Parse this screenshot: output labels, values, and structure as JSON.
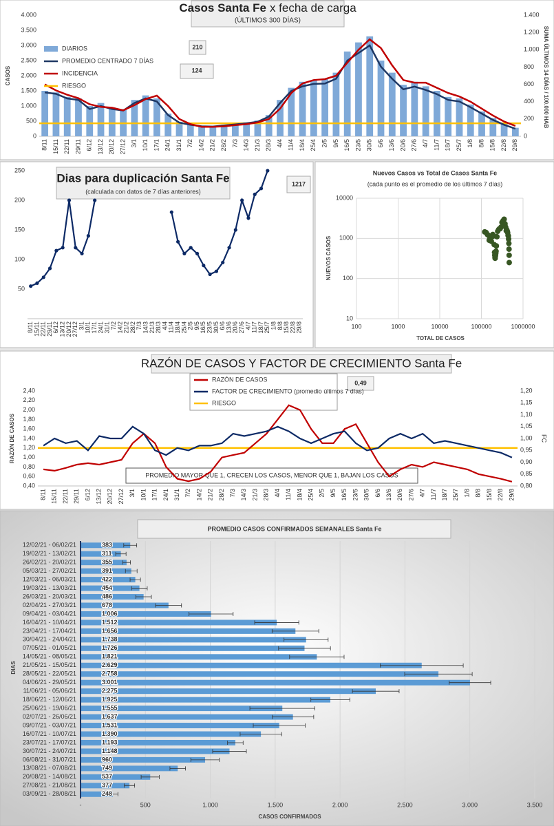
{
  "chart_data": [
    {
      "type": "combo",
      "title": "Casos Santa Fe",
      "title_suffix": "x fecha de carga",
      "subtitle": "(ÚLTIMOS 300 DÍAS)",
      "y_label": "CASOS",
      "y2_label": "SUMA ÚLTIMOS 14 DÍAS / 100.000 HAB",
      "categories": [
        "8/11",
        "15/11",
        "22/11",
        "29/11",
        "6/12",
        "13/12",
        "20/12",
        "27/12",
        "3/1",
        "10/1",
        "17/1",
        "24/1",
        "31/1",
        "7/2",
        "14/2",
        "21/2",
        "28/2",
        "7/3",
        "14/3",
        "21/3",
        "28/3",
        "4/4",
        "11/4",
        "18/4",
        "25/4",
        "2/5",
        "9/5",
        "16/5",
        "23/5",
        "30/5",
        "6/6",
        "13/6",
        "20/6",
        "27/6",
        "4/7",
        "11/7",
        "18/7",
        "25/7",
        "1/8",
        "8/8",
        "15/8",
        "22/8",
        "29/8"
      ],
      "ylim": [
        0,
        4000
      ],
      "yticks": [
        0,
        500,
        {
          "value": 1000,
          "label": "1.000"
        },
        {
          "value": 1500,
          "label": "1.500"
        },
        {
          "value": 2000,
          "label": "2.000"
        },
        {
          "value": 2500,
          "label": "2.500"
        },
        {
          "value": 3000,
          "label": "3.000"
        },
        {
          "value": 3500,
          "label": "3.500"
        },
        {
          "value": 4000,
          "label": "4.000"
        }
      ],
      "y2lim": [
        0,
        1400
      ],
      "y2ticks": [
        0,
        200,
        400,
        600,
        800,
        {
          "value": 1000,
          "label": "1.000"
        },
        {
          "value": 1200,
          "label": "1.200"
        },
        {
          "value": 1400,
          "label": "1.400"
        }
      ],
      "series": [
        {
          "name": "DIARIOS",
          "type": "bar",
          "color": "#7fa9d8",
          "values": [
            1500,
            1450,
            1300,
            1250,
            1000,
            1100,
            950,
            900,
            1200,
            1350,
            1250,
            750,
            480,
            400,
            350,
            340,
            380,
            420,
            460,
            520,
            700,
            1200,
            1600,
            1800,
            1850,
            1900,
            2100,
            2800,
            3100,
            3300,
            2500,
            2100,
            1700,
            1800,
            1650,
            1500,
            1300,
            1250,
            1050,
            820,
            600,
            420,
            280
          ]
        },
        {
          "name": "PROMEDIO CENTRADO 7 DÍAS",
          "type": "line",
          "color": "#1f3864",
          "values": [
            1450,
            1400,
            1250,
            1200,
            900,
            1000,
            900,
            850,
            1100,
            1250,
            1150,
            700,
            450,
            380,
            330,
            320,
            360,
            390,
            430,
            480,
            650,
            1100,
            1500,
            1650,
            1730,
            1740,
            1900,
            2500,
            2750,
            3000,
            2300,
            1900,
            1550,
            1640,
            1530,
            1390,
            1200,
            1150,
            960,
            750,
            540,
            380,
            250
          ]
        },
        {
          "name": "INCIDENCIA",
          "type": "line",
          "color": "#c00000",
          "axis": "y2",
          "values": [
            600,
            530,
            480,
            440,
            370,
            340,
            330,
            300,
            360,
            430,
            470,
            350,
            200,
            140,
            110,
            110,
            115,
            130,
            140,
            160,
            200,
            320,
            500,
            610,
            650,
            660,
            700,
            850,
            1000,
            1120,
            1020,
            820,
            650,
            620,
            620,
            560,
            500,
            460,
            400,
            320,
            240,
            170,
            120
          ]
        }
      ],
      "reference": {
        "name": "RIESGO",
        "color": "#ffc000",
        "axis": "y2",
        "value": 150
      },
      "legend": "upper left",
      "annotations": [
        "210",
        "124"
      ]
    },
    {
      "type": "line",
      "title": "Dias para duplicación Santa Fe",
      "subtitle": "(calculada con datos de 7 días anteriores)",
      "categories": [
        "8/11",
        "15/11",
        "22/11",
        "29/11",
        "6/12",
        "13/12",
        "20/12",
        "27/12",
        "3/1",
        "10/1",
        "17/1",
        "24/1",
        "31/1",
        "7/2",
        "14/2",
        "21/2",
        "28/2",
        "7/3",
        "14/3",
        "21/3",
        "28/3",
        "4/4",
        "11/4",
        "18/4",
        "25/4",
        "2/5",
        "9/5",
        "16/5",
        "23/5",
        "30/5",
        "6/6",
        "13/6",
        "20/6",
        "27/6",
        "4/7",
        "11/7",
        "18/7",
        "25/7",
        "1/8",
        "8/8",
        "15/8",
        "22/8",
        "29/8"
      ],
      "ylim": [
        0,
        250
      ],
      "yticks": [
        50,
        100,
        150,
        200,
        250
      ],
      "markers": true,
      "series": [
        {
          "name": "DIAS",
          "color": "#0d2a66",
          "values": [
            55,
            60,
            70,
            85,
            115,
            120,
            200,
            120,
            110,
            140,
            200,
            null,
            null,
            null,
            null,
            null,
            null,
            null,
            null,
            null,
            null,
            null,
            180,
            130,
            110,
            120,
            110,
            90,
            75,
            80,
            95,
            120,
            150,
            200,
            170,
            210,
            220,
            250,
            null,
            null,
            null,
            null,
            null
          ]
        }
      ],
      "annotations": [
        "1217"
      ]
    },
    {
      "type": "scatter",
      "title": "Nuevos Casos vs Total de Casos Santa Fe",
      "subtitle": "(cada punto es el promedio de los últimos 7 días)",
      "y_label": "NUEVOS CASOS",
      "x_label": "TOTAL DE CASOS",
      "xlog": true,
      "ylog": true,
      "grid": true,
      "color": "#375623",
      "xlim": [
        100,
        1000000
      ],
      "xticks": [
        100,
        1000,
        10000,
        100000,
        1000000
      ],
      "ylim": [
        10,
        10000
      ],
      "yticks": [
        10,
        100,
        1000,
        10000
      ],
      "x": [
        120000,
        130000,
        139000,
        147000,
        154000,
        161000,
        167000,
        173000,
        180000,
        188000,
        197000,
        203000,
        207000,
        209600,
        212000,
        214000,
        216500,
        219000,
        222000,
        225000,
        229000,
        236000,
        246000,
        258000,
        270000,
        282000,
        295000,
        312000,
        331000,
        352000,
        370000,
        384000,
        395000,
        406000,
        417000,
        427000,
        436000,
        444000,
        451000,
        457000,
        461000,
        464000,
        466000
      ],
      "values": [
        1450,
        1400,
        1250,
        1200,
        900,
        1000,
        900,
        850,
        1100,
        1250,
        1150,
        700,
        450,
        380,
        330,
        320,
        360,
        390,
        430,
        480,
        650,
        1100,
        1500,
        1650,
        1730,
        1740,
        1900,
        2500,
        2750,
        3000,
        2300,
        1900,
        1550,
        1640,
        1530,
        1390,
        1200,
        1150,
        960,
        750,
        540,
        380,
        250
      ]
    },
    {
      "type": "line",
      "title": "RAZÓN DE CASOS Y FACTOR DE CRECIMIENTO Santa Fe",
      "y_label": "RAZÓN DE CASOS",
      "y2_label": "FC",
      "categories": [
        "8/11",
        "15/11",
        "22/11",
        "29/11",
        "6/12",
        "13/12",
        "20/12",
        "27/12",
        "3/1",
        "10/1",
        "17/1",
        "24/1",
        "31/1",
        "7/2",
        "14/2",
        "21/2",
        "28/2",
        "7/3",
        "14/3",
        "21/3",
        "28/3",
        "4/4",
        "11/4",
        "18/4",
        "25/4",
        "2/5",
        "9/5",
        "16/5",
        "23/5",
        "30/5",
        "6/6",
        "13/6",
        "20/6",
        "27/6",
        "4/7",
        "11/7",
        "18/7",
        "25/7",
        "1/8",
        "8/8",
        "15/8",
        "22/8",
        "29/8"
      ],
      "ylim": [
        0.4,
        2.4
      ],
      "yticks": [
        {
          "value": 0.4,
          "label": "0,40"
        },
        {
          "value": 0.6,
          "label": "0,60"
        },
        {
          "value": 0.8,
          "label": "0,80"
        },
        {
          "value": 1.0,
          "label": "1,00"
        },
        {
          "value": 1.2,
          "label": "1,20"
        },
        {
          "value": 1.4,
          "label": "1,40"
        },
        {
          "value": 1.6,
          "label": "1,60"
        },
        {
          "value": 1.8,
          "label": "1,80"
        },
        {
          "value": 2.0,
          "label": "2,00"
        },
        {
          "value": 2.2,
          "label": "2,20"
        },
        {
          "value": 2.4,
          "label": "2,40"
        }
      ],
      "y2lim": [
        0.8,
        1.2
      ],
      "y2ticks": [
        {
          "value": 0.8,
          "label": "0,80"
        },
        {
          "value": 0.85,
          "label": "0,85"
        },
        {
          "value": 0.9,
          "label": "0,90"
        },
        {
          "value": 0.95,
          "label": "0,95"
        },
        {
          "value": 1.0,
          "label": "1,00"
        },
        {
          "value": 1.05,
          "label": "1,05"
        },
        {
          "value": 1.1,
          "label": "1,10"
        },
        {
          "value": 1.15,
          "label": "1,15"
        },
        {
          "value": 1.2,
          "label": "1,20"
        }
      ],
      "series": [
        {
          "name": "RAZÓN DE CASOS",
          "color": "#c00000",
          "values": [
            0.75,
            0.72,
            0.78,
            0.85,
            0.88,
            0.85,
            0.9,
            0.95,
            1.3,
            1.5,
            1.3,
            0.8,
            0.55,
            0.5,
            0.55,
            0.7,
            1.0,
            1.05,
            1.1,
            1.3,
            1.5,
            1.8,
            2.1,
            2.0,
            1.6,
            1.3,
            1.3,
            1.6,
            1.7,
            1.3,
            0.9,
            0.6,
            0.75,
            0.85,
            0.8,
            0.9,
            0.85,
            0.8,
            0.75,
            0.65,
            0.6,
            0.55,
            0.49
          ]
        },
        {
          "name": "FACTOR DE CRECIMIENTO (promedio últimos 7 días)",
          "color": "#0d2a66",
          "axis": "y2",
          "values": [
            0.97,
            1.0,
            0.98,
            0.99,
            0.95,
            1.01,
            1.0,
            1.0,
            1.05,
            1.02,
            0.95,
            0.93,
            0.96,
            0.95,
            0.97,
            0.97,
            0.98,
            1.02,
            1.01,
            1.02,
            1.03,
            1.05,
            1.03,
            1.0,
            0.98,
            1.0,
            1.02,
            1.03,
            0.98,
            0.95,
            0.96,
            1.0,
            1.02,
            1.0,
            1.02,
            0.98,
            0.99,
            0.98,
            0.97,
            0.96,
            0.95,
            0.94,
            0.92
          ]
        }
      ],
      "reference": {
        "name": "RIESGO",
        "color": "#ffc000",
        "value": 1.2
      },
      "legend": "upper center",
      "annotations": [
        "0,49"
      ],
      "note": "PROMEDIO MAYOR QUE 1, CRECEN LOS CASOS, MENOR QUE 1, BAJAN LOS CASOS"
    },
    {
      "type": "hbar",
      "title": "PROMEDIO CASOS CONFIRMADOS SEMANALES Santa Fe",
      "y_label": "DIAS",
      "x_label": "CASOS CONFIRMADOS",
      "color": "#5b9bd5",
      "grid": true,
      "categories": [
        "12/02/21 - 06/02/21",
        "19/02/21 - 13/02/21",
        "26/02/21 - 20/02/21",
        "05/03/21 - 27/02/21",
        "12/03/21 - 06/03/21",
        "19/03/21 - 13/03/21",
        "26/03/21 - 20/03/21",
        "02/04/21 - 27/03/21",
        "09/04/21 - 03/04/21",
        "16/04/21 - 10/04/21",
        "23/04/21 - 17/04/21",
        "30/04/21 - 24/04/21",
        "07/05/21 - 01/05/21",
        "14/05/21 - 08/05/21",
        "21/05/21 - 15/05/21",
        "28/05/21 - 22/05/21",
        "04/06/21 - 29/05/21",
        "11/06/21 - 05/06/21",
        "18/06/21 - 12/06/21",
        "25/06/21 - 19/06/21",
        "02/07/21 - 26/06/21",
        "09/07/21 - 03/07/21",
        "16/07/21 - 10/07/21",
        "23/07/21 - 17/07/21",
        "30/07/21 - 24/07/21",
        "06/08/21 - 31/07/21",
        "13/08/21 - 07/08/21",
        "20/08/21 - 14/08/21",
        "27/08/21 - 21/08/21",
        "03/09/21 - 28/08/21"
      ],
      "values": [
        383,
        311,
        355,
        391,
        422,
        454,
        486,
        678,
        1006,
        1512,
        1656,
        1738,
        1726,
        1821,
        2629,
        2758,
        3001,
        2275,
        1925,
        1555,
        1637,
        1531,
        1390,
        1193,
        1148,
        960,
        749,
        537,
        377,
        248
      ],
      "value_labels": [
        "383",
        "311",
        "355",
        "391",
        "422",
        "454",
        "486",
        "678",
        "1.006",
        "1.512",
        "1.656",
        "1.738",
        "1.726",
        "1.821",
        "2.629",
        "2.758",
        "3.001",
        "2.275",
        "1.925",
        "1.555",
        "1.637",
        "1.531",
        "1.390",
        "1.193",
        "1.148",
        "960",
        "749",
        "537",
        "377",
        "248"
      ],
      "errors": [
        50,
        40,
        30,
        45,
        40,
        60,
        60,
        100,
        170,
        170,
        180,
        170,
        200,
        210,
        320,
        260,
        160,
        180,
        150,
        250,
        160,
        200,
        160,
        60,
        130,
        110,
        60,
        70,
        40,
        40
      ],
      "xlim": [
        0,
        3500
      ],
      "xticks": [
        {
          "value": 0,
          "label": "-"
        },
        500,
        {
          "value": 1000,
          "label": "1.000"
        },
        {
          "value": 1500,
          "label": "1.500"
        },
        {
          "value": 2000,
          "label": "2.000"
        },
        {
          "value": 2500,
          "label": "2.500"
        },
        {
          "value": 3000,
          "label": "3.000"
        },
        {
          "value": 3500,
          "label": "3.500"
        }
      ]
    }
  ]
}
